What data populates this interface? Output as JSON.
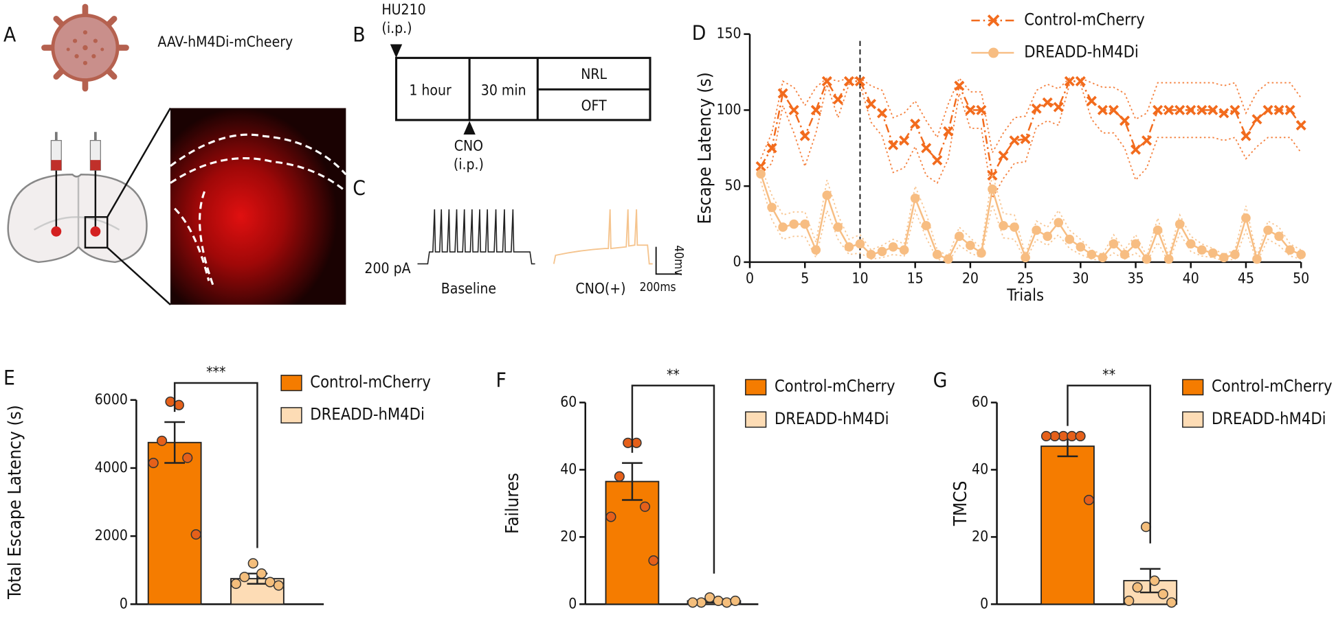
{
  "panels": {
    "A": {
      "label": "A",
      "text": "AAV-hM4Di-mCheery"
    },
    "B": {
      "label": "B",
      "drug": "HU210",
      "route": "(i.p.)",
      "step1": "1 hour",
      "step2": "30 min",
      "test1": "NRL",
      "test2": "OFT",
      "drug2": "CNO",
      "route2": "(i.p.)"
    },
    "C": {
      "label": "C",
      "current": "200 pA",
      "trace1": "Baseline",
      "trace2": "CNO(+)",
      "scale_v": "40mv",
      "scale_t": "200ms"
    }
  },
  "chart_data": [
    {
      "type": "line",
      "label": "D",
      "xlabel": "Trials",
      "ylabel": "Escape Latency (s)",
      "x": [
        1,
        2,
        3,
        4,
        5,
        6,
        7,
        8,
        9,
        10,
        11,
        12,
        13,
        14,
        15,
        16,
        17,
        18,
        19,
        20,
        21,
        22,
        23,
        24,
        25,
        26,
        27,
        28,
        29,
        30,
        31,
        32,
        33,
        34,
        35,
        36,
        37,
        38,
        39,
        40,
        41,
        42,
        43,
        44,
        45,
        46,
        47,
        48,
        49,
        50
      ],
      "xlim": [
        0,
        50
      ],
      "xticks": [
        0,
        5,
        10,
        15,
        20,
        25,
        30,
        35,
        40,
        45,
        50
      ],
      "ylim": [
        0,
        150
      ],
      "yticks": [
        0,
        50,
        100,
        150
      ],
      "vline": 10,
      "series": [
        {
          "name": "Control-mCherry",
          "color": "#f26b1d",
          "marker": "x",
          "linestyle": "dashdot",
          "values": [
            63,
            75,
            111,
            100,
            83,
            100,
            119,
            107,
            119,
            119,
            104,
            98,
            77,
            80,
            91,
            75,
            67,
            86,
            116,
            100,
            100,
            57,
            70,
            80,
            81,
            101,
            105,
            102,
            119,
            119,
            106,
            100,
            100,
            93,
            74,
            80,
            100,
            100,
            100,
            100,
            100,
            100,
            98,
            100,
            83,
            94,
            100,
            100,
            100,
            90
          ],
          "errors": [
            5,
            10,
            8,
            15,
            20,
            15,
            2,
            12,
            2,
            2,
            12,
            15,
            18,
            18,
            15,
            18,
            15,
            18,
            5,
            12,
            12,
            15,
            15,
            15,
            15,
            12,
            12,
            12,
            2,
            2,
            12,
            15,
            15,
            18,
            20,
            18,
            18,
            18,
            18,
            18,
            18,
            18,
            18,
            18,
            15,
            18,
            18,
            18,
            18,
            18
          ]
        },
        {
          "name": "DREADD-hM4Di",
          "color": "#f7bd82",
          "marker": "circle",
          "linestyle": "solid",
          "values": [
            58,
            36,
            23,
            25,
            25,
            8,
            44,
            23,
            10,
            12,
            5,
            7,
            10,
            8,
            42,
            24,
            5,
            2,
            17,
            11,
            6,
            48,
            24,
            23,
            3,
            21,
            17,
            26,
            15,
            10,
            5,
            3,
            12,
            5,
            12,
            2,
            21,
            2,
            25,
            12,
            8,
            6,
            3,
            5,
            29,
            2,
            21,
            17,
            8,
            5
          ],
          "errors": [
            5,
            8,
            8,
            8,
            8,
            5,
            10,
            8,
            5,
            6,
            3,
            4,
            5,
            4,
            8,
            8,
            3,
            2,
            6,
            5,
            3,
            10,
            8,
            8,
            2,
            6,
            6,
            8,
            6,
            5,
            3,
            2,
            6,
            3,
            6,
            2,
            8,
            2,
            6,
            5,
            4,
            3,
            2,
            3,
            8,
            2,
            6,
            6,
            4,
            3
          ]
        }
      ]
    },
    {
      "type": "bar",
      "label": "E",
      "ylabel": "Total Escape Latency (s)",
      "categories": [
        "Control-mCherry",
        "DREADD-hM4Di"
      ],
      "colors": [
        "#f57c00",
        "#fddcb5"
      ],
      "point_colors": [
        "#e5601a",
        "#f4be7c"
      ],
      "values": [
        4750,
        750
      ],
      "errors": [
        600,
        150
      ],
      "points": [
        [
          5950,
          5850,
          4800,
          4300,
          4150,
          2050
        ],
        [
          1200,
          900,
          800,
          650,
          600,
          550
        ]
      ],
      "ylim": [
        0,
        6000
      ],
      "yticks": [
        0,
        2000,
        4000,
        6000
      ],
      "significance": "***"
    },
    {
      "type": "bar",
      "label": "F",
      "ylabel": "Failures",
      "categories": [
        "Control-mCherry",
        "DREADD-hM4Di"
      ],
      "colors": [
        "#f57c00",
        "#fddcb5"
      ],
      "point_colors": [
        "#e5601a",
        "#f4be7c"
      ],
      "values": [
        36.5,
        1
      ],
      "errors": [
        5.5,
        0.5
      ],
      "points": [
        [
          48,
          48,
          38,
          29,
          26,
          13
        ],
        [
          2,
          1,
          0.5,
          0.5,
          0.5,
          1
        ]
      ],
      "ylim": [
        0,
        60
      ],
      "yticks": [
        0,
        20,
        40,
        60
      ],
      "significance": "**"
    },
    {
      "type": "bar",
      "label": "G",
      "ylabel": "TMCS",
      "categories": [
        "Control-mCherry",
        "DREADD-hM4Di"
      ],
      "colors": [
        "#f57c00",
        "#fddcb5"
      ],
      "point_colors": [
        "#e5601a",
        "#f4be7c"
      ],
      "values": [
        47,
        7
      ],
      "errors": [
        3,
        3.5
      ],
      "points": [
        [
          50,
          50,
          50,
          50,
          50,
          31
        ],
        [
          23,
          7,
          5,
          3,
          1,
          0.5
        ]
      ],
      "ylim": [
        0,
        60
      ],
      "yticks": [
        0,
        20,
        40,
        60
      ],
      "significance": "**"
    }
  ]
}
